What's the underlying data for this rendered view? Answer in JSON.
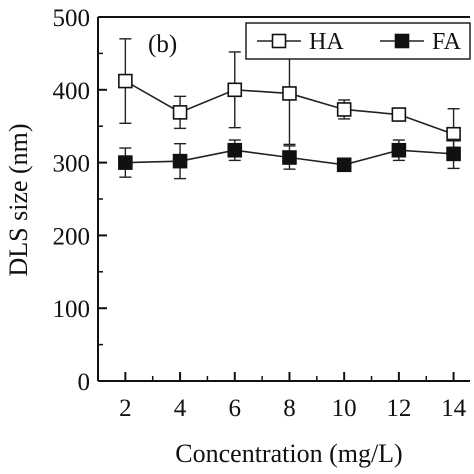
{
  "chart_data": {
    "type": "line",
    "panel_label": "(b)",
    "xlabel": "Concentration (mg/L)",
    "ylabel": "DLS size (nm)",
    "x": [
      2,
      4,
      6,
      8,
      10,
      12,
      14
    ],
    "xticks": [
      2,
      4,
      6,
      8,
      10,
      12,
      14
    ],
    "yticks": [
      0,
      100,
      200,
      300,
      400,
      500
    ],
    "xlim": [
      1,
      14.6
    ],
    "ylim": [
      0,
      500
    ],
    "grid": false,
    "legend_position": "top-right",
    "series": [
      {
        "name": "HA",
        "marker": "open-square",
        "values": [
          412,
          369,
          400,
          395,
          373,
          366,
          339
        ],
        "errors": [
          58,
          22,
          52,
          70,
          13,
          7,
          35
        ]
      },
      {
        "name": "FA",
        "marker": "filled-square",
        "values": [
          300,
          302,
          317,
          307,
          297,
          317,
          312
        ],
        "errors": [
          20,
          24,
          14,
          16,
          7,
          14,
          20
        ]
      }
    ],
    "colors": {
      "line": "#222222",
      "open_fill": "#ffffff",
      "filled_fill": "#111111"
    }
  }
}
